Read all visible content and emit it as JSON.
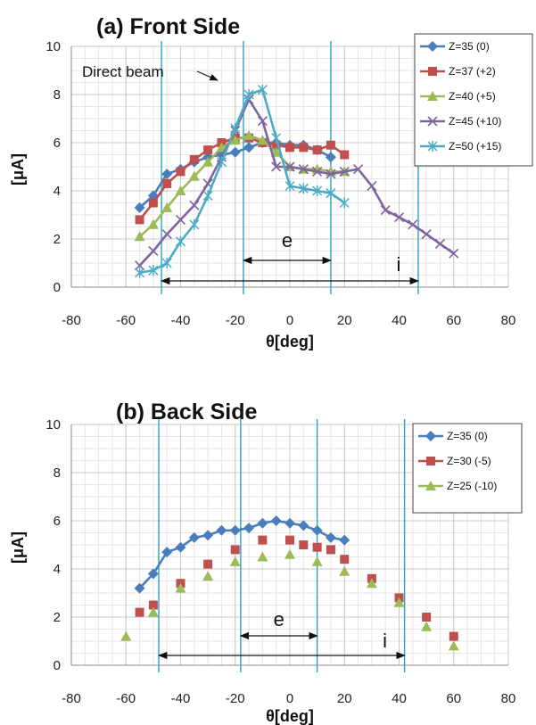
{
  "chart_data": [
    {
      "type": "line",
      "title": "(a) Front Side",
      "xlabel": "θ[deg]",
      "ylabel": "[μA]",
      "xlim": [
        -80,
        80
      ],
      "ylim": [
        0,
        10
      ],
      "xticks": [
        -80,
        -60,
        -40,
        -20,
        0,
        20,
        40,
        60,
        80
      ],
      "yticks": [
        0,
        2,
        4,
        6,
        8,
        10
      ],
      "grid": true,
      "legend_position": "top-right",
      "vlines": [
        -47,
        -17,
        15,
        47
      ],
      "annotations": {
        "direct_beam": "Direct beam",
        "e_label": "e",
        "e_span": [
          -17,
          15
        ],
        "i_label": "i",
        "i_span": [
          -47,
          47
        ]
      },
      "series": [
        {
          "name": "Z=35 (0)",
          "color": "#4a7ebb",
          "marker": "diamond",
          "x": [
            -55,
            -50,
            -45,
            -40,
            -35,
            -30,
            -25,
            -20,
            -15,
            -10,
            -5,
            0,
            5,
            10,
            15
          ],
          "y": [
            3.3,
            3.8,
            4.7,
            4.9,
            5.2,
            5.4,
            5.5,
            5.6,
            5.8,
            6.0,
            6.0,
            5.9,
            5.9,
            5.7,
            5.4
          ]
        },
        {
          "name": "Z=37 (+2)",
          "color": "#c0504d",
          "marker": "square",
          "x": [
            -55,
            -50,
            -45,
            -40,
            -35,
            -30,
            -25,
            -20,
            -15,
            -10,
            -5,
            0,
            5,
            10,
            15,
            20
          ],
          "y": [
            2.8,
            3.5,
            4.3,
            4.8,
            5.3,
            5.7,
            6.0,
            6.2,
            6.2,
            6.0,
            5.9,
            5.8,
            5.8,
            5.7,
            5.9,
            5.5
          ]
        },
        {
          "name": "Z=40 (+5)",
          "color": "#9bbb59",
          "marker": "triangle",
          "x": [
            -55,
            -50,
            -45,
            -40,
            -35,
            -30,
            -25,
            -20,
            -15,
            -10,
            -5,
            0,
            5,
            10,
            15,
            20
          ],
          "y": [
            2.1,
            2.6,
            3.3,
            4.0,
            4.6,
            5.2,
            5.8,
            6.1,
            6.3,
            6.1,
            5.6,
            5.0,
            4.9,
            4.9,
            4.8,
            4.8
          ]
        },
        {
          "name": "Z=45 (+10)",
          "color": "#8064a2",
          "marker": "x",
          "x": [
            -55,
            -50,
            -45,
            -40,
            -35,
            -30,
            -25,
            -20,
            -15,
            -10,
            -5,
            0,
            5,
            10,
            15,
            20,
            25,
            30,
            35,
            40,
            45,
            50,
            55,
            60
          ],
          "y": [
            0.9,
            1.5,
            2.2,
            2.8,
            3.4,
            4.3,
            5.4,
            6.5,
            7.8,
            6.9,
            5.0,
            5.0,
            4.9,
            4.8,
            4.7,
            4.8,
            4.9,
            4.2,
            3.2,
            2.9,
            2.6,
            2.2,
            1.8,
            1.4
          ]
        },
        {
          "name": "Z=50 (+15)",
          "color": "#4bacc6",
          "marker": "asterisk",
          "x": [
            -55,
            -50,
            -45,
            -40,
            -35,
            -30,
            -25,
            -20,
            -15,
            -10,
            -5,
            0,
            5,
            10,
            15,
            20
          ],
          "y": [
            0.6,
            0.7,
            1.0,
            1.9,
            2.6,
            3.8,
            5.2,
            6.6,
            8.0,
            8.2,
            6.2,
            4.2,
            4.1,
            4.0,
            3.9,
            3.5
          ]
        }
      ]
    },
    {
      "type": "scatter",
      "title": "(b) Back Side",
      "xlabel": "θ[deg]",
      "ylabel": "[μA]",
      "xlim": [
        -80,
        80
      ],
      "ylim": [
        0,
        10
      ],
      "xticks": [
        -80,
        -60,
        -40,
        -20,
        0,
        20,
        40,
        60,
        80
      ],
      "yticks": [
        0,
        2,
        4,
        6,
        8,
        10
      ],
      "grid": true,
      "legend_position": "top-right",
      "vlines": [
        -48,
        -18,
        10,
        42
      ],
      "annotations": {
        "e_label": "e",
        "e_span": [
          -18,
          10
        ],
        "i_label": "i",
        "i_span": [
          -48,
          42
        ]
      },
      "series": [
        {
          "name": "Z=35 (0)",
          "color": "#4a7ebb",
          "marker": "diamond",
          "line": true,
          "x": [
            -55,
            -50,
            -45,
            -40,
            -35,
            -30,
            -25,
            -20,
            -15,
            -10,
            -5,
            0,
            5,
            10,
            15,
            20
          ],
          "y": [
            3.2,
            3.8,
            4.7,
            4.9,
            5.3,
            5.4,
            5.6,
            5.6,
            5.7,
            5.9,
            6.0,
            5.9,
            5.8,
            5.6,
            5.3,
            5.2
          ]
        },
        {
          "name": "Z=30 (-5)",
          "color": "#c0504d",
          "marker": "square",
          "line": false,
          "x": [
            -55,
            -50,
            -40,
            -30,
            -20,
            -10,
            0,
            5,
            10,
            15,
            20,
            30,
            40,
            50,
            60
          ],
          "y": [
            2.2,
            2.5,
            3.4,
            4.2,
            4.8,
            5.2,
            5.2,
            5.0,
            4.9,
            4.8,
            4.4,
            3.6,
            2.8,
            2.0,
            1.2
          ]
        },
        {
          "name": "Z=25 (-10)",
          "color": "#9bbb59",
          "marker": "triangle",
          "line": false,
          "x": [
            -60,
            -50,
            -40,
            -30,
            -20,
            -10,
            0,
            10,
            20,
            30,
            40,
            50,
            60
          ],
          "y": [
            1.2,
            2.2,
            3.2,
            3.7,
            4.3,
            4.5,
            4.6,
            4.3,
            3.9,
            3.4,
            2.6,
            1.6,
            0.8
          ]
        }
      ]
    }
  ]
}
